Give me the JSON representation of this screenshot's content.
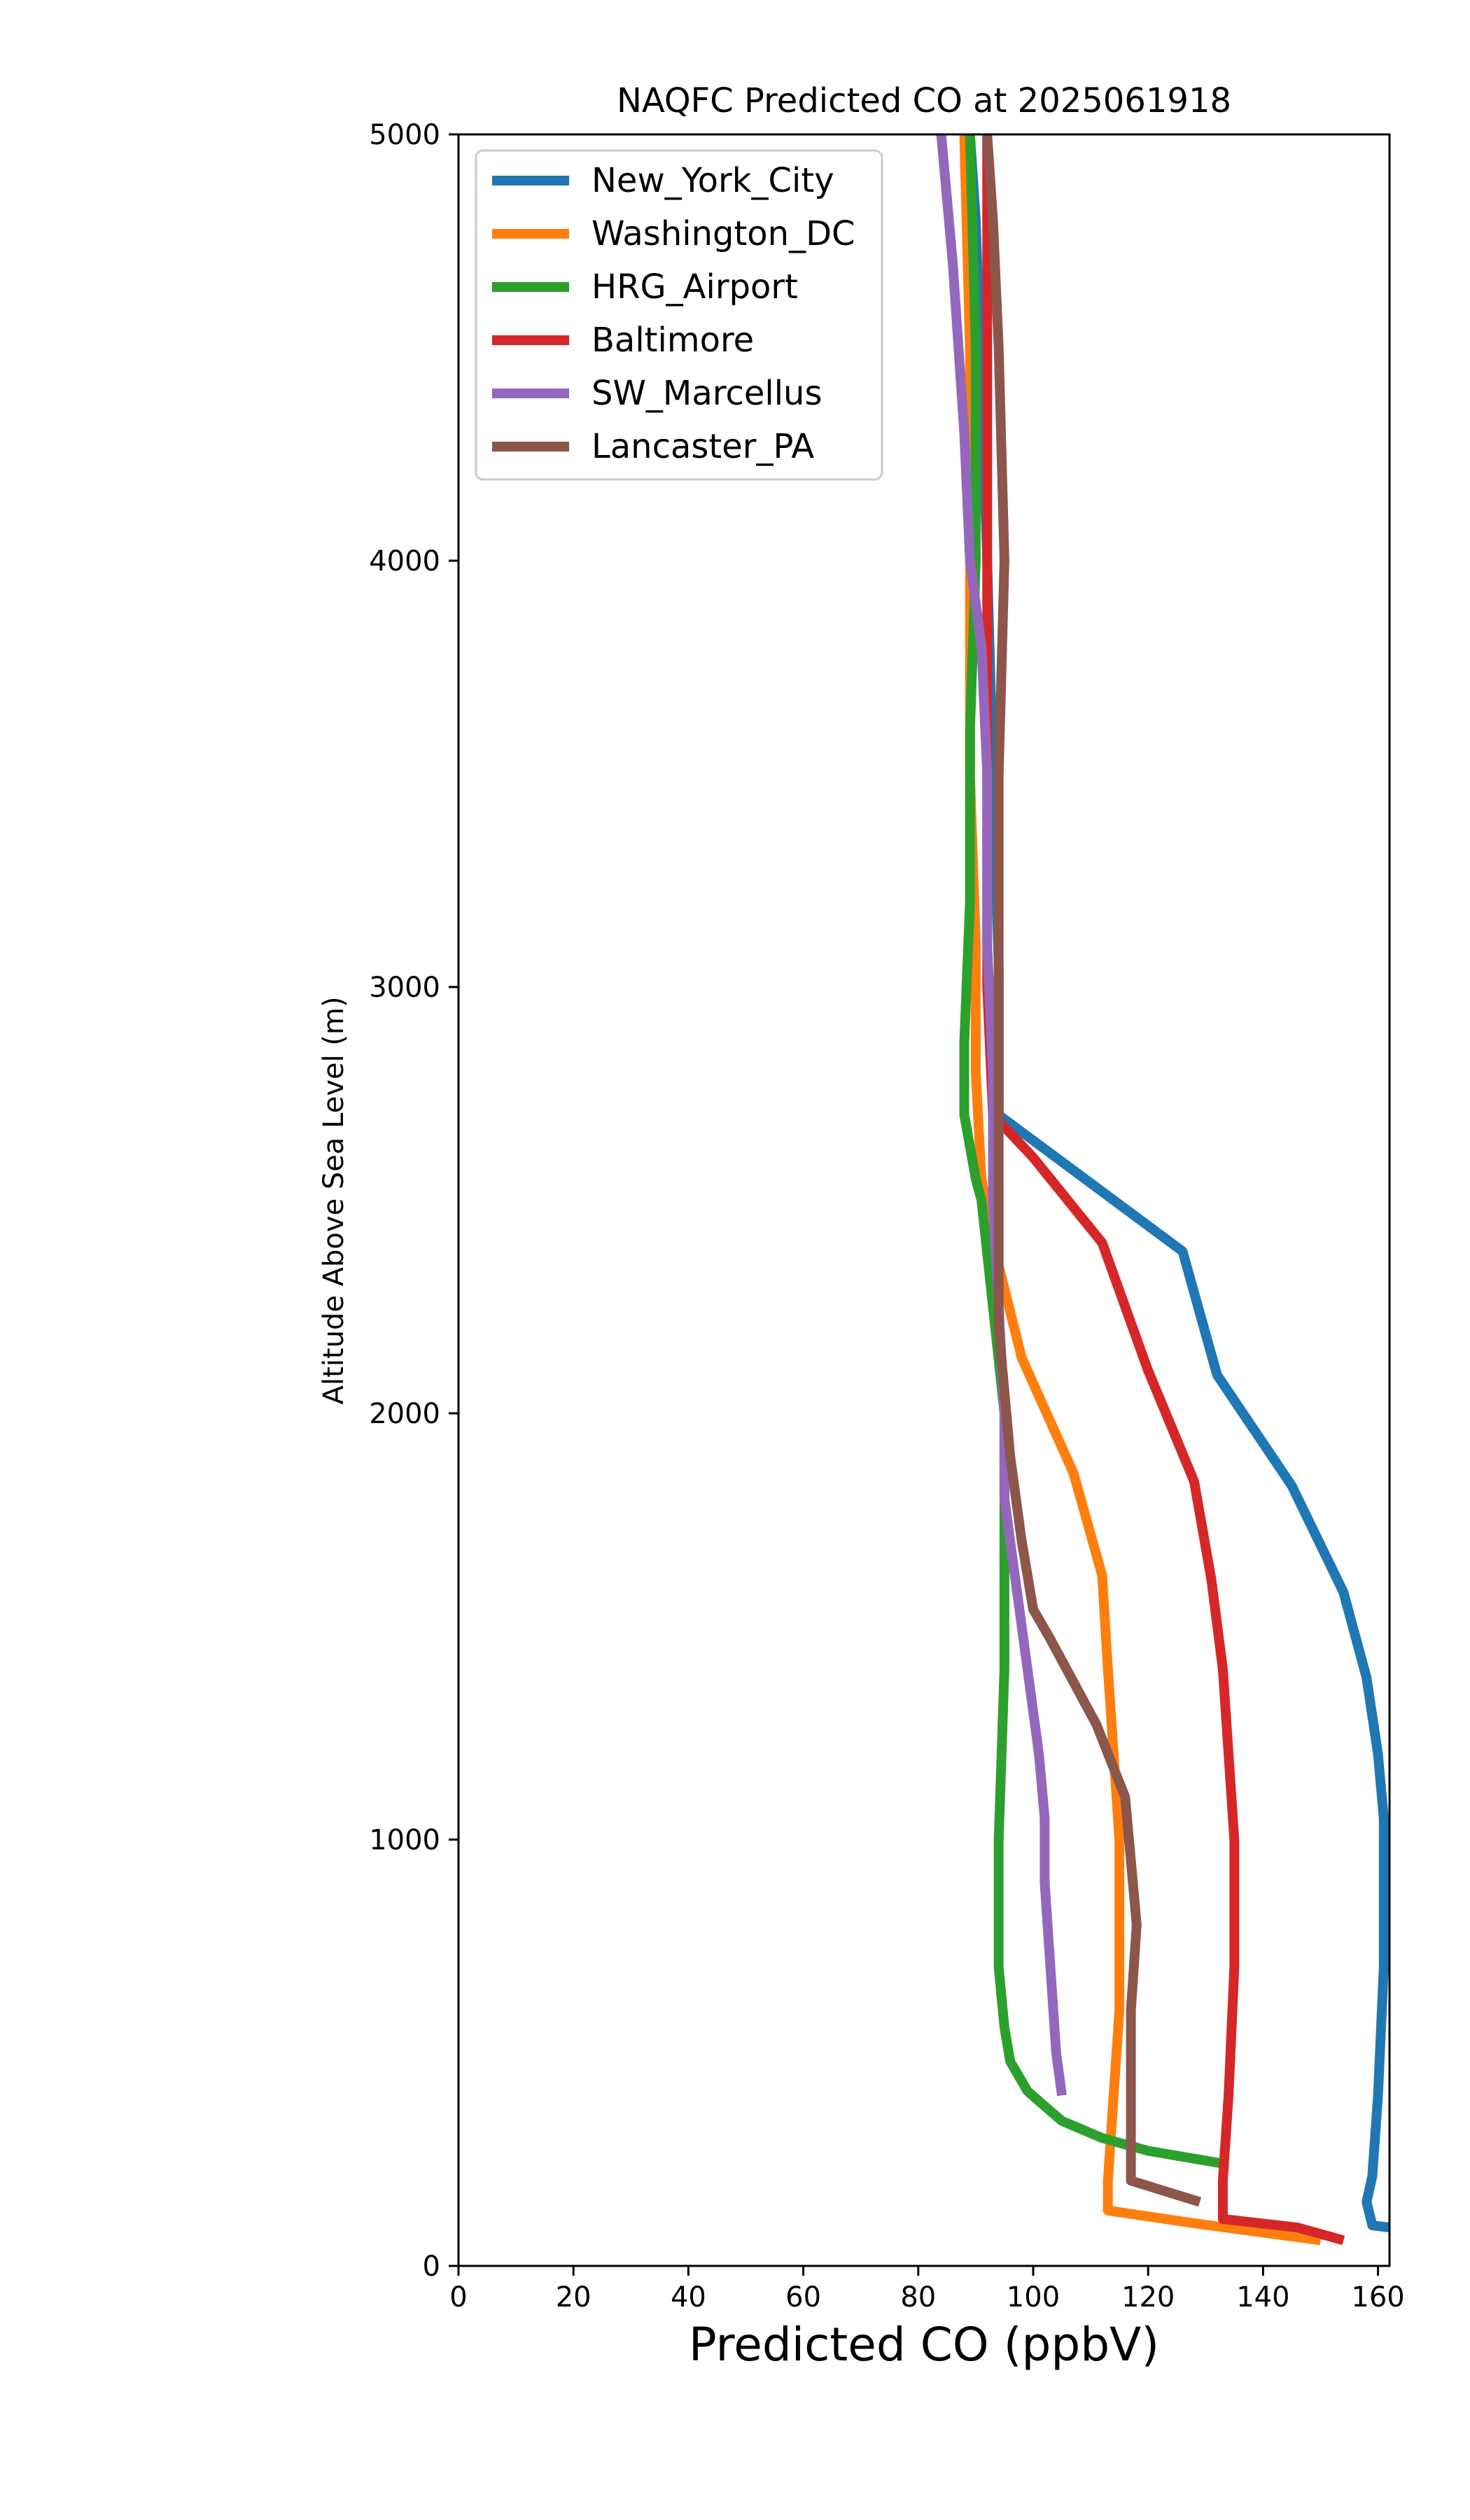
{
  "chart_data": {
    "type": "line",
    "title": "NAQFC Predicted CO at 2025061918",
    "xlabel": "Predicted CO (ppbV)",
    "ylabel": "Altitude Above Sea Level (m)",
    "xlim": [
      0,
      162
    ],
    "ylim": [
      0,
      5000
    ],
    "xticks": [
      0,
      20,
      40,
      60,
      80,
      100,
      120,
      140,
      160
    ],
    "yticks": [
      0,
      1000,
      2000,
      3000,
      4000,
      5000
    ],
    "grid": false,
    "legend_position": "upper-left",
    "series": [
      {
        "name": "New_York_City",
        "color": "#1f77b4",
        "points": [
          [
            162,
            90
          ],
          [
            159,
            95
          ],
          [
            158,
            150
          ],
          [
            159,
            210
          ],
          [
            160,
            400
          ],
          [
            161,
            700
          ],
          [
            161,
            900
          ],
          [
            161,
            1050
          ],
          [
            160,
            1200
          ],
          [
            158,
            1380
          ],
          [
            154,
            1580
          ],
          [
            145,
            1830
          ],
          [
            132,
            2090
          ],
          [
            126,
            2380
          ],
          [
            94,
            2700
          ],
          [
            94,
            3050
          ],
          [
            93,
            3500
          ],
          [
            92,
            4000
          ],
          [
            91,
            4400
          ],
          [
            90,
            4800
          ],
          [
            89,
            5000
          ]
        ]
      },
      {
        "name": "Washington_DC",
        "color": "#ff7f0e",
        "points": [
          [
            150,
            60
          ],
          [
            128,
            100
          ],
          [
            113,
            130
          ],
          [
            113,
            200
          ],
          [
            114,
            400
          ],
          [
            115,
            600
          ],
          [
            115,
            800
          ],
          [
            115,
            1000
          ],
          [
            114,
            1200
          ],
          [
            113,
            1400
          ],
          [
            112,
            1620
          ],
          [
            107,
            1860
          ],
          [
            98,
            2130
          ],
          [
            93,
            2400
          ],
          [
            91,
            2550
          ],
          [
            90,
            2800
          ],
          [
            90,
            3100
          ],
          [
            89,
            3500
          ],
          [
            89,
            4000
          ],
          [
            89,
            4500
          ],
          [
            88,
            5000
          ]
        ]
      },
      {
        "name": "HRG_Airport",
        "color": "#2ca02c",
        "points": [
          [
            133,
            240
          ],
          [
            120,
            270
          ],
          [
            112,
            300
          ],
          [
            105,
            340
          ],
          [
            99,
            410
          ],
          [
            96,
            480
          ],
          [
            95,
            560
          ],
          [
            94,
            700
          ],
          [
            94,
            1000
          ],
          [
            95,
            1400
          ],
          [
            95,
            1700
          ],
          [
            95,
            2000
          ],
          [
            93,
            2250
          ],
          [
            91,
            2500
          ],
          [
            90,
            2550
          ],
          [
            88,
            2700
          ],
          [
            88,
            2870
          ],
          [
            89,
            3200
          ],
          [
            89,
            3600
          ],
          [
            90,
            4000
          ],
          [
            90,
            4500
          ],
          [
            89,
            5000
          ]
        ]
      },
      {
        "name": "Baltimore",
        "color": "#d62728",
        "points": [
          [
            154,
            60
          ],
          [
            146,
            90
          ],
          [
            133,
            110
          ],
          [
            133,
            200
          ],
          [
            134,
            400
          ],
          [
            135,
            700
          ],
          [
            135,
            1000
          ],
          [
            134,
            1200
          ],
          [
            133,
            1400
          ],
          [
            131,
            1610
          ],
          [
            128,
            1840
          ],
          [
            120,
            2100
          ],
          [
            112,
            2400
          ],
          [
            100,
            2600
          ],
          [
            93,
            2700
          ],
          [
            92,
            3000
          ],
          [
            92,
            3300
          ],
          [
            92,
            3600
          ],
          [
            92,
            4000
          ],
          [
            92,
            4500
          ],
          [
            92,
            5000
          ]
        ]
      },
      {
        "name": "SW_Marcellus",
        "color": "#9467bd",
        "points": [
          [
            105,
            400
          ],
          [
            104,
            500
          ],
          [
            103,
            700
          ],
          [
            102,
            900
          ],
          [
            102,
            1050
          ],
          [
            101,
            1200
          ],
          [
            99,
            1400
          ],
          [
            97,
            1600
          ],
          [
            96,
            1700
          ],
          [
            95,
            1800
          ],
          [
            95,
            2000
          ],
          [
            94,
            2250
          ],
          [
            93,
            2500
          ],
          [
            93,
            2800
          ],
          [
            92,
            3100
          ],
          [
            92,
            3500
          ],
          [
            91,
            3800
          ],
          [
            89,
            4000
          ],
          [
            88,
            4300
          ],
          [
            86,
            4700
          ],
          [
            84,
            5000
          ]
        ]
      },
      {
        "name": "Lancaster_PA",
        "color": "#8c564b",
        "points": [
          [
            129,
            150
          ],
          [
            117,
            200
          ],
          [
            117,
            400
          ],
          [
            117,
            600
          ],
          [
            118,
            800
          ],
          [
            117,
            950
          ],
          [
            116,
            1100
          ],
          [
            111,
            1270
          ],
          [
            103,
            1470
          ],
          [
            100,
            1540
          ],
          [
            98,
            1700
          ],
          [
            96,
            1900
          ],
          [
            94,
            2200
          ],
          [
            94,
            2500
          ],
          [
            94,
            2700
          ],
          [
            94,
            3000
          ],
          [
            94,
            3500
          ],
          [
            95,
            4000
          ],
          [
            94,
            4500
          ],
          [
            93,
            4800
          ],
          [
            92,
            5000
          ]
        ]
      }
    ]
  }
}
